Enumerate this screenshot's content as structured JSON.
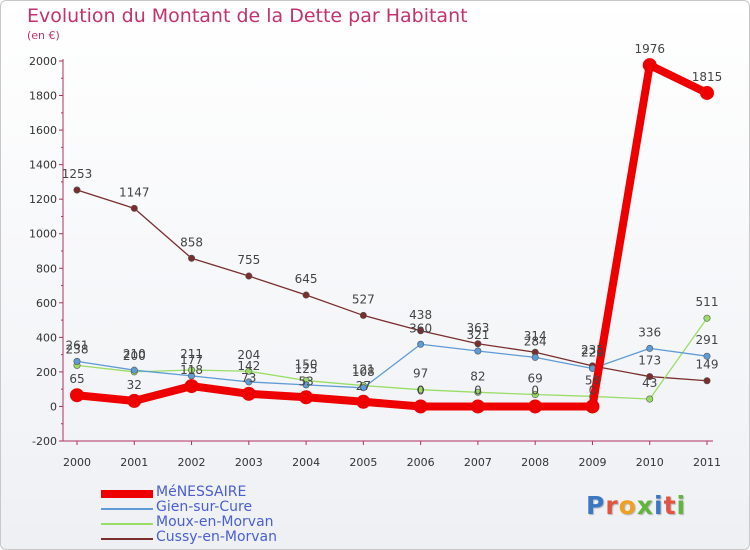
{
  "header": {
    "title": "Evolution du Montant de la Dette par Habitant",
    "subtitle": "(en €)"
  },
  "logo": {
    "text": "Proxiti",
    "letter_colors": [
      "#3a78c4",
      "#e2543f",
      "#f0a020",
      "#62b53c",
      "#3a78c4",
      "#e2543f",
      "#62b53c"
    ]
  },
  "chart_data": {
    "type": "line",
    "title": "Evolution du Montant de la Dette par Habitant",
    "subtitle": "(en €)",
    "xlabel": "",
    "ylabel": "",
    "x": [
      "2000",
      "2001",
      "2002",
      "2003",
      "2004",
      "2005",
      "2006",
      "2007",
      "2008",
      "2009",
      "2010",
      "2011"
    ],
    "ylim": [
      -200,
      2000
    ],
    "yticks": [
      "-200",
      "0",
      "200",
      "400",
      "600",
      "800",
      "1000",
      "1200",
      "1400",
      "1600",
      "1800",
      "2000"
    ],
    "grid": false,
    "legend_position": "bottom-left",
    "series": [
      {
        "name": "MéNESSAIRE",
        "color": "#ee0000",
        "values": [
          65,
          32,
          118,
          73,
          53,
          27,
          0,
          0,
          0,
          0,
          1976,
          1815
        ],
        "labels": [
          "65",
          "32",
          "118",
          "73",
          "53",
          "27",
          "0",
          "0",
          "0",
          "0",
          "1976",
          "1815"
        ]
      },
      {
        "name": "Gien-sur-Cure",
        "color": "#5f9bd4",
        "values": [
          261,
          210,
          177,
          142,
          125,
          108,
          360,
          321,
          284,
          220,
          336,
          291
        ],
        "labels": [
          "261",
          "210",
          "177",
          "142",
          "125",
          "108",
          "360",
          "321",
          "284",
          "220",
          "336",
          "291"
        ]
      },
      {
        "name": "Moux-en-Morvan",
        "color": "#99dd66",
        "values": [
          238,
          200,
          211,
          204,
          150,
          121,
          97,
          82,
          69,
          58,
          43,
          511
        ],
        "labels": [
          "238",
          "200",
          "211",
          "204",
          "150",
          "121",
          "97",
          "82",
          "69",
          "58",
          "43",
          "511"
        ]
      },
      {
        "name": "Cussy-en-Morvan",
        "color": "#7a2e2e",
        "values": [
          1253,
          1147,
          858,
          755,
          645,
          527,
          438,
          363,
          314,
          235,
          173,
          149
        ],
        "labels": [
          "1253",
          "1147",
          "858",
          "755",
          "645",
          "527",
          "438",
          "363",
          "314",
          "235",
          "173",
          "149"
        ]
      }
    ]
  }
}
